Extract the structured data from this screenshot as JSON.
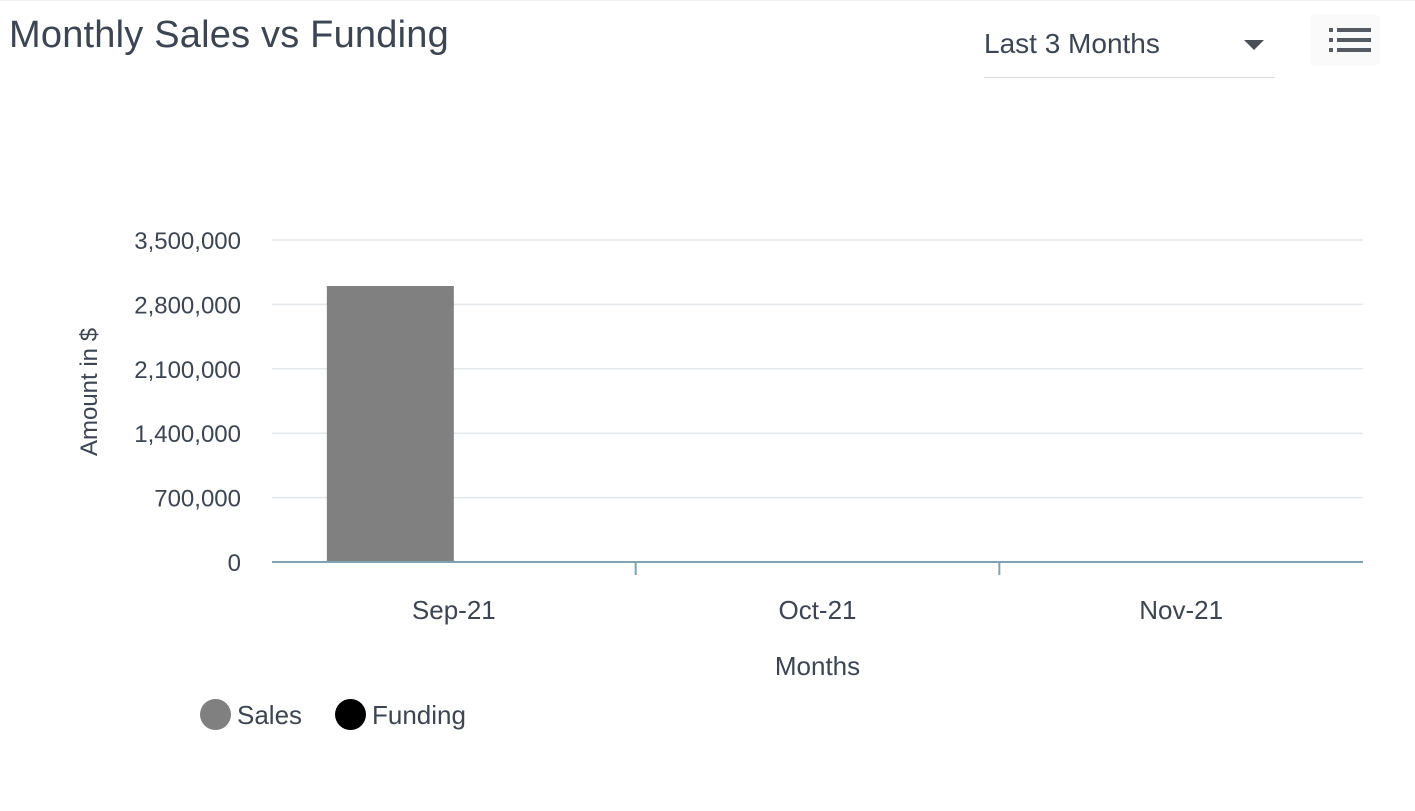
{
  "header": {
    "title": "Monthly Sales vs Funding",
    "range_select": {
      "value": "Last 3 Months",
      "caret_icon": "chevron-down-icon"
    },
    "menu_icon": "hamburger-menu-icon"
  },
  "chart_data": {
    "type": "bar",
    "categories": [
      "Sep-21",
      "Oct-21",
      "Nov-21"
    ],
    "series": [
      {
        "name": "Sales",
        "color": "#808080",
        "values": [
          3000000,
          0,
          0
        ]
      },
      {
        "name": "Funding",
        "color": "#000000",
        "values": [
          0,
          0,
          0
        ]
      }
    ],
    "xlabel": "Months",
    "ylabel": "Amount in $",
    "ylim": [
      0,
      3500000
    ],
    "yticks": [
      0,
      700000,
      1400000,
      2100000,
      2800000,
      3500000
    ],
    "ytick_labels": [
      "0",
      "700,000",
      "1,400,000",
      "2,100,000",
      "2,800,000",
      "3,500,000"
    ],
    "grid": true,
    "legend_position": "bottom-left"
  }
}
